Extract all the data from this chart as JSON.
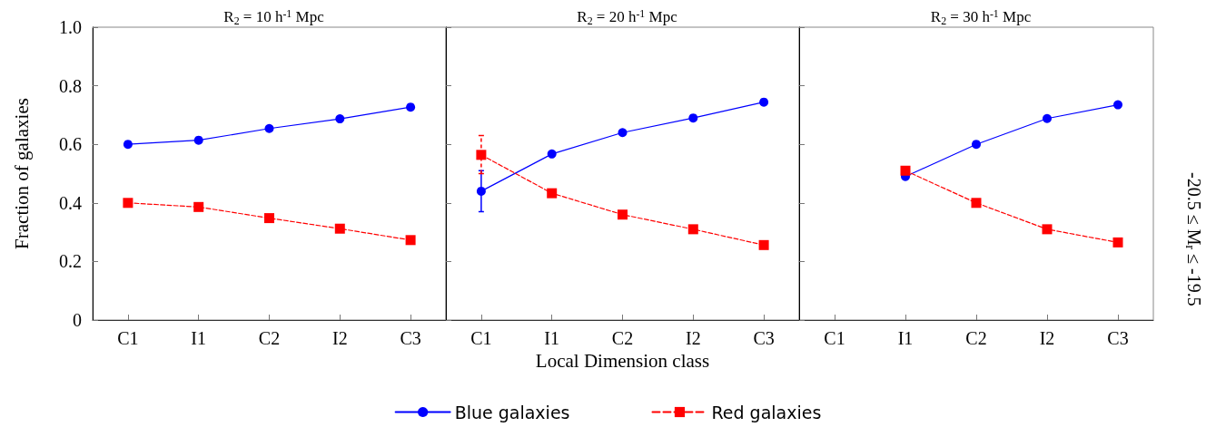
{
  "chart_data": [
    {
      "type": "line",
      "title": "R$_{2}$ = 10 h$^{-1}$ Mpc",
      "ylabel": "Fraction of galaxies",
      "categories": [
        "C1",
        "I1",
        "C2",
        "I2",
        "C3"
      ],
      "ylim": [
        0,
        1
      ],
      "yticks": [
        0,
        0.2,
        0.4,
        0.6,
        0.8,
        {
          "value": 1,
          "label": "1.0"
        }
      ],
      "grid": false,
      "series": [
        {
          "color": "#0000ff",
          "marker": "circle",
          "line_style": "solid",
          "values": [
            0.6,
            0.614,
            0.654,
            0.687,
            0.727
          ]
        },
        {
          "color": "#ff0000",
          "marker": "square",
          "line_style": "dashed",
          "values": [
            0.4,
            0.386,
            0.348,
            0.312,
            0.273
          ]
        }
      ]
    },
    {
      "type": "line",
      "title": "R$_{2}$ = 20 h$^{-1}$ Mpc",
      "xlabel": "Local Dimension class",
      "categories": [
        "C1",
        "I1",
        "C2",
        "I2",
        "C3"
      ],
      "ylim": [
        0,
        1
      ],
      "yticks": [
        0,
        0.2,
        0.4,
        0.6,
        0.8,
        1.0
      ],
      "grid": false,
      "tick_labels": "x",
      "legend": "bottom",
      "series": [
        {
          "name": "Blue galaxies",
          "color": "#0000ff",
          "marker": "circle",
          "line_style": "solid",
          "values": [
            0.44,
            0.567,
            0.64,
            0.69,
            0.744
          ],
          "errors": [
            [
              0.37,
              0.51
            ],
            null,
            null,
            null,
            null
          ]
        },
        {
          "name": "Red galaxies",
          "color": "#ff0000",
          "marker": "square",
          "line_style": "dashed",
          "values": [
            0.564,
            0.433,
            0.36,
            0.31,
            0.256
          ],
          "errors": [
            [
              0.5,
              0.63
            ],
            null,
            null,
            null,
            null
          ]
        }
      ]
    },
    {
      "type": "line",
      "title": "R$_{2}$ = 30 h$^{-1}$ Mpc",
      "y2label": "-20.5 ≤ M$_{r}$ ≤ -19.5",
      "categories": [
        "C1",
        "I1",
        "C2",
        "I2",
        "C3"
      ],
      "ylim": [
        0,
        1
      ],
      "yticks": [
        0,
        0.2,
        0.4,
        0.6,
        0.8,
        1.0
      ],
      "grid": false,
      "tick_labels": "x",
      "series": [
        {
          "color": "#0000ff",
          "marker": "circle",
          "line_style": "solid",
          "values": [
            null,
            0.49,
            0.6,
            0.688,
            0.735
          ]
        },
        {
          "color": "#ff0000",
          "marker": "square",
          "line_style": "dashed",
          "values": [
            null,
            0.51,
            0.4,
            0.31,
            0.265
          ]
        }
      ]
    }
  ]
}
